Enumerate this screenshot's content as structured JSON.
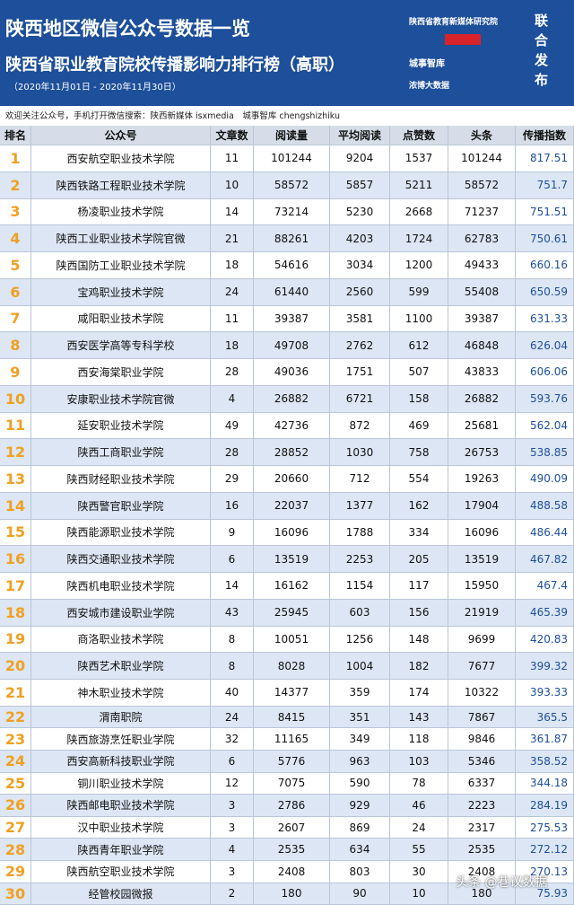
{
  "header": {
    "title": "陕西地区微信公众号数据一览",
    "subtitle": "陕西省职业教育院校传播影响力排行榜（高职）",
    "period": "（2020年11月01日 - 2020年11月30日）",
    "logos": [
      "陕西省教育新媒体研究院",
      "城事智库",
      "浓博大数据"
    ],
    "joint": "联合发布"
  },
  "notice": "欢迎关注公众号，手机打开微信搜索：陕西新媒体 isxmedia　城事智库 chengshizhiku",
  "table": {
    "columns": [
      "排名",
      "公众号",
      "文章数",
      "阅读量",
      "平均阅读",
      "点赞数",
      "头条",
      "传播指数"
    ],
    "rows": [
      [
        1,
        "西安航空职业技术学院",
        11,
        101244,
        9204,
        1537,
        101244,
        817.51
      ],
      [
        2,
        "陕西铁路工程职业技术学院",
        10,
        58572,
        5857,
        5211,
        58572,
        751.7
      ],
      [
        3,
        "杨凌职业技术学院",
        14,
        73214,
        5230,
        2668,
        71237,
        751.51
      ],
      [
        4,
        "陕西工业职业技术学院官微",
        21,
        88261,
        4203,
        1724,
        62783,
        750.61
      ],
      [
        5,
        "陕西国防工业职业技术学院",
        18,
        54616,
        3034,
        1200,
        49433,
        660.16
      ],
      [
        6,
        "宝鸡职业技术学院",
        24,
        61440,
        2560,
        599,
        55408,
        650.59
      ],
      [
        7,
        "咸阳职业技术学院",
        11,
        39387,
        3581,
        1100,
        39387,
        631.33
      ],
      [
        8,
        "西安医学高等专科学校",
        18,
        49708,
        2762,
        612,
        46848,
        626.04
      ],
      [
        9,
        "西安海棠职业学院",
        28,
        49036,
        1751,
        507,
        43833,
        606.06
      ],
      [
        10,
        "安康职业技术学院官微",
        4,
        26882,
        6721,
        158,
        26882,
        593.76
      ],
      [
        11,
        "延安职业技术学院",
        49,
        42736,
        872,
        469,
        25681,
        562.04
      ],
      [
        12,
        "陕西工商职业学院",
        28,
        28852,
        1030,
        758,
        26753,
        538.85
      ],
      [
        13,
        "陕西财经职业技术学院",
        29,
        20660,
        712,
        554,
        19263,
        490.09
      ],
      [
        14,
        "陕西警官职业学院",
        16,
        22037,
        1377,
        162,
        17904,
        488.58
      ],
      [
        15,
        "陕西能源职业技术学院",
        9,
        16096,
        1788,
        334,
        16096,
        486.44
      ],
      [
        16,
        "陕西交通职业技术学院",
        6,
        13519,
        2253,
        205,
        13519,
        467.82
      ],
      [
        17,
        "陕西机电职业技术学院",
        14,
        16162,
        1154,
        117,
        15950,
        467.4
      ],
      [
        18,
        "西安城市建设职业学院",
        43,
        25945,
        603,
        156,
        21919,
        465.39
      ],
      [
        19,
        "商洛职业技术学院",
        8,
        10051,
        1256,
        148,
        9699,
        420.83
      ],
      [
        20,
        "陕西艺术职业学院",
        8,
        8028,
        1004,
        182,
        7677,
        399.32
      ],
      [
        21,
        "神木职业技术学院",
        40,
        14377,
        359,
        174,
        10322,
        393.33
      ],
      [
        22,
        "渭南职院",
        24,
        8415,
        351,
        143,
        7867,
        365.5
      ],
      [
        23,
        "陕西旅游烹饪职业学院",
        32,
        11165,
        349,
        118,
        9846,
        361.87
      ],
      [
        24,
        "西安高新科技职业学院",
        6,
        5776,
        963,
        103,
        5346,
        358.52
      ],
      [
        25,
        "铜川职业技术学院",
        12,
        7075,
        590,
        78,
        6337,
        344.18
      ],
      [
        26,
        "陕西邮电职业技术学院",
        3,
        2786,
        929,
        46,
        2223,
        284.19
      ],
      [
        27,
        "汉中职业技术学院",
        3,
        2607,
        869,
        24,
        2317,
        275.53
      ],
      [
        28,
        "陕西青年职业学院",
        4,
        2535,
        634,
        55,
        2535,
        272.12
      ],
      [
        29,
        "陕西航空职业技术学院",
        3,
        2408,
        803,
        30,
        2408,
        270.13
      ],
      [
        30,
        "经管校园微报",
        2,
        180,
        90,
        10,
        180,
        75.93
      ]
    ]
  },
  "watermark": "头条 @巷议数据"
}
